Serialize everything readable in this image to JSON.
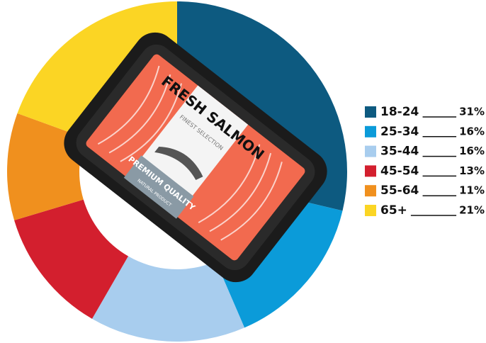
{
  "chart_data": {
    "type": "donut",
    "categories": [
      "18-24",
      "25-34",
      "35-44",
      "45-54",
      "55-64",
      "65+"
    ],
    "values": [
      31,
      16,
      16,
      13,
      11,
      21
    ],
    "value_labels": [
      "31%",
      "16%",
      "16%",
      "13%",
      "11%",
      "21%"
    ],
    "colors": [
      "#0d5a80",
      "#0b9bd9",
      "#a8cdee",
      "#d31f2e",
      "#f0901e",
      "#fbd524"
    ]
  },
  "image": {
    "title": "FRESH SALMON",
    "subtitle": "FINEST SELECTION",
    "badge": "PREMIUM QUALITY",
    "badge_note": "NATURAL PRODUCT"
  }
}
